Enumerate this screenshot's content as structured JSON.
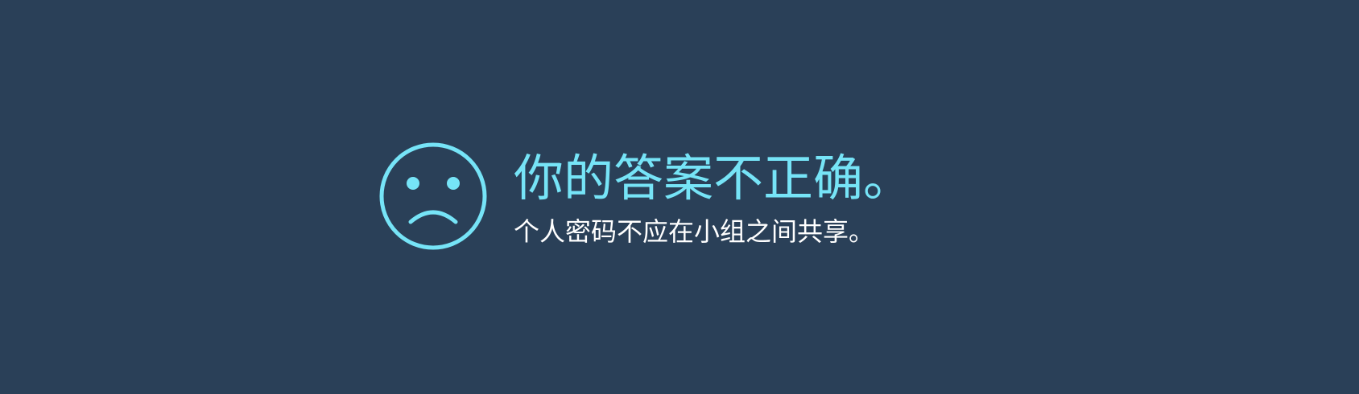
{
  "feedback": {
    "icon": "sad-face-icon",
    "accent_color": "#76e4f7",
    "background_color": "#2a4058",
    "title": "你的答案不正确。",
    "message": "个人密码不应在小组之间共享。"
  }
}
